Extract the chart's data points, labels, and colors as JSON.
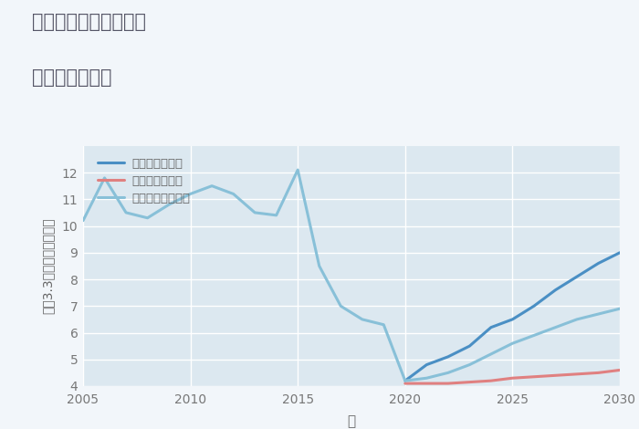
{
  "title_line1": "三重県伊賀市柘植町の",
  "title_line2": "土地の価格推移",
  "xlabel": "年",
  "ylabel": "坪（3.3㎡）単価（万円）",
  "xlim": [
    2005,
    2030
  ],
  "ylim": [
    4,
    13
  ],
  "yticks": [
    4,
    5,
    6,
    7,
    8,
    9,
    10,
    11,
    12
  ],
  "xticks": [
    2005,
    2010,
    2015,
    2020,
    2025,
    2030
  ],
  "fig_bg_color": "#f2f6fa",
  "plot_bg_color": "#dce8f0",
  "grid_color": "#ffffff",
  "title_color": "#555566",
  "tick_color": "#777777",
  "label_color": "#666666",
  "legend_labels": [
    "グッドシナリオ",
    "バッドシナリオ",
    "ノーマルシナリオ"
  ],
  "good_color": "#4a8fc4",
  "bad_color": "#e08080",
  "normal_color": "#88c0d8",
  "good_x": [
    2020,
    2021,
    2022,
    2023,
    2024,
    2025,
    2026,
    2027,
    2028,
    2029,
    2030
  ],
  "good_y": [
    4.2,
    4.8,
    5.1,
    5.5,
    6.2,
    6.5,
    7.0,
    7.6,
    8.1,
    8.6,
    9.0
  ],
  "bad_x": [
    2020,
    2021,
    2022,
    2023,
    2024,
    2025,
    2026,
    2027,
    2028,
    2029,
    2030
  ],
  "bad_y": [
    4.1,
    4.1,
    4.1,
    4.15,
    4.2,
    4.3,
    4.35,
    4.4,
    4.45,
    4.5,
    4.6
  ],
  "normal_x": [
    2005,
    2006,
    2007,
    2008,
    2009,
    2010,
    2011,
    2012,
    2013,
    2014,
    2015,
    2016,
    2017,
    2018,
    2019,
    2020,
    2021,
    2022,
    2023,
    2024,
    2025,
    2026,
    2027,
    2028,
    2029,
    2030
  ],
  "normal_y": [
    10.2,
    11.8,
    10.5,
    10.3,
    10.8,
    11.2,
    11.5,
    11.2,
    10.5,
    10.4,
    12.1,
    8.5,
    7.0,
    6.5,
    6.3,
    4.2,
    4.3,
    4.5,
    4.8,
    5.2,
    5.6,
    5.9,
    6.2,
    6.5,
    6.7,
    6.9
  ]
}
